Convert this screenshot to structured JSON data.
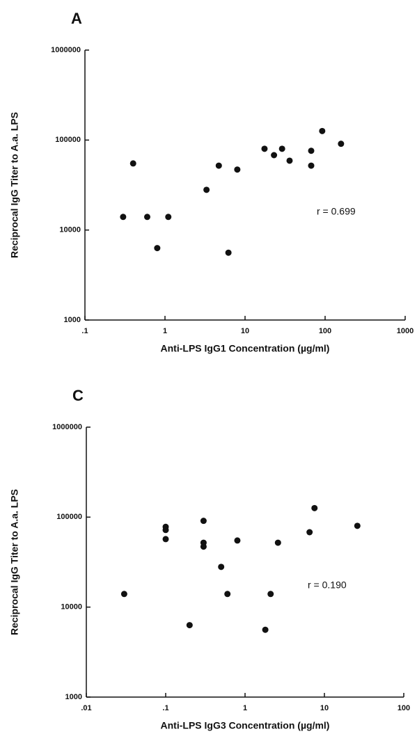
{
  "chart_data": [
    {
      "type": "scatter",
      "title": "A",
      "x_label": "Anti-LPS  IgG1  Concentration  (µg/ml)",
      "y_label": "Reciprocal IgG Titer to A.a. LPS",
      "annotation": "r = 0.699",
      "xscale": "log",
      "yscale": "log",
      "color": "#111111",
      "xlim": [
        0.1,
        1000
      ],
      "ylim": [
        1000,
        1000000
      ],
      "xticks": [
        {
          "value": 0.1,
          "label": ".1"
        },
        1,
        10,
        100,
        1000
      ],
      "yticks": [
        1000,
        10000,
        100000,
        1000000
      ],
      "x": [
        0.3,
        0.4,
        0.6,
        0.8,
        1.1,
        3.3,
        4.7,
        6.2,
        8,
        17.5,
        23,
        29,
        36,
        67,
        67,
        92,
        158
      ],
      "values": [
        14000,
        55000,
        14000,
        6300,
        14000,
        28000,
        52000,
        5600,
        47000,
        80000,
        68000,
        80000,
        59000,
        76000,
        52000,
        126000,
        91000
      ]
    },
    {
      "type": "scatter",
      "title": "C",
      "x_label": "Anti-LPS  IgG3  Concentration  (µg/ml)",
      "y_label": "Reciprocal IgG Titer to A.a. LPS",
      "annotation": "r = 0.190",
      "xscale": "log",
      "yscale": "log",
      "color": "#111111",
      "xlim": [
        0.01,
        100
      ],
      "ylim": [
        1000,
        1000000
      ],
      "xticks": [
        {
          "value": 0.01,
          "label": ".01"
        },
        {
          "value": 0.1,
          "label": ".1"
        },
        1,
        10,
        100
      ],
      "yticks": [
        1000,
        10000,
        100000,
        1000000
      ],
      "x": [
        0.03,
        0.1,
        0.1,
        0.1,
        0.2,
        0.3,
        0.3,
        0.3,
        0.5,
        0.6,
        0.8,
        1.8,
        2.1,
        2.6,
        6.5,
        7.5,
        26
      ],
      "values": [
        14000,
        78000,
        72000,
        57000,
        6300,
        91000,
        52000,
        47000,
        28000,
        14000,
        55000,
        5600,
        14000,
        52000,
        68000,
        126000,
        80000
      ]
    }
  ]
}
